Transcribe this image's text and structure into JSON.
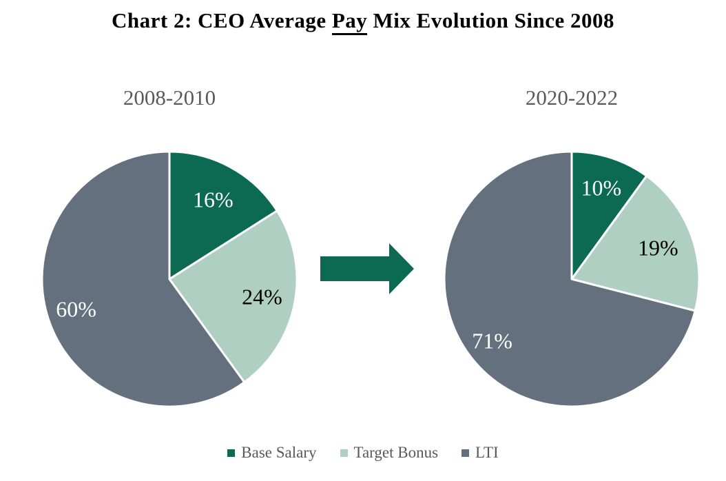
{
  "title": {
    "prefix": "Chart 2: CEO Average ",
    "underlined": "Pay",
    "suffix": " Mix Evolution Since 2008"
  },
  "colors": {
    "base_salary": "#0C6A53",
    "target_bonus": "#AFCFC2",
    "lti": "#65707F",
    "arrow_green": "#0C6A53",
    "slice_border": "#FFFFFF",
    "label_white": "#FFFFFF",
    "label_black": "#000000",
    "text_gray": "#595959",
    "title_black": "#000000"
  },
  "legend": {
    "items": [
      {
        "label": "Base Salary",
        "color_key": "base_salary"
      },
      {
        "label": "Target Bonus",
        "color_key": "target_bonus"
      },
      {
        "label": "LTI",
        "color_key": "lti"
      }
    ]
  },
  "chart_data": [
    {
      "type": "pie",
      "title": "2008-2010",
      "categories": [
        "Base Salary",
        "Target Bonus",
        "LTI"
      ],
      "values": [
        16,
        24,
        60
      ],
      "labels": [
        "16%",
        "24%",
        "60%"
      ],
      "color_keys": [
        "base_salary",
        "target_bonus",
        "lti"
      ],
      "label_color_keys": [
        "label_white",
        "label_black",
        "label_white"
      ],
      "label_radius": [
        0.71,
        0.74,
        0.77
      ],
      "start_angle_deg": 0,
      "direction": "clockwise",
      "legend_position": "bottom-shared"
    },
    {
      "type": "pie",
      "title": "2020-2022",
      "categories": [
        "Base Salary",
        "Target Bonus",
        "LTI"
      ],
      "values": [
        10,
        19,
        71
      ],
      "labels": [
        "10%",
        "19%",
        "71%"
      ],
      "color_keys": [
        "base_salary",
        "target_bonus",
        "lti"
      ],
      "label_color_keys": [
        "label_white",
        "label_black",
        "label_white"
      ],
      "label_radius": [
        0.75,
        0.72,
        0.79
      ],
      "start_angle_deg": 0,
      "direction": "clockwise",
      "legend_position": "bottom-shared"
    }
  ]
}
